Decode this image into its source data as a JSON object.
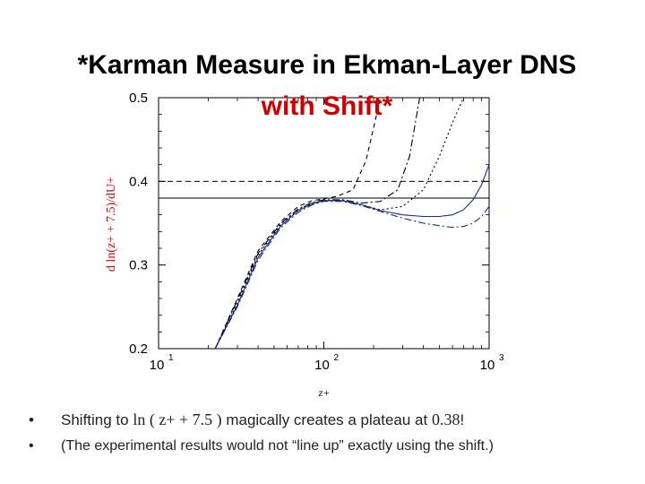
{
  "slide": {
    "title_line1": "*Karman Measure in Ekman-Layer DNS",
    "title_line2": "with Shift*",
    "accent_color": "#cc0000"
  },
  "bullets": [
    {
      "symbol": "•",
      "text_before": "Shifting to ",
      "math": "ln ( z+ + 7.5 )",
      "text_middle": " magically creates a plateau at ",
      "value": "0.38",
      "text_after": "!"
    },
    {
      "symbol": "•",
      "text": "(The experimental results would not “line up” exactly using the shift.)"
    }
  ],
  "chart_data": {
    "type": "line",
    "ylabel": "d ln(z+ + 7.5)/dU+",
    "xlabel": "z+",
    "x_scale": "log",
    "xlim": [
      10,
      1000
    ],
    "ylim": [
      0.2,
      0.5
    ],
    "x_ticks": [
      10,
      100,
      1000
    ],
    "x_tick_labels": [
      "10",
      "10",
      "10"
    ],
    "x_tick_exponents": [
      "1",
      "2",
      "3"
    ],
    "y_ticks": [
      0.2,
      0.3,
      0.4,
      0.5
    ],
    "y_tick_labels": [
      "0.2",
      "0.3",
      "0.4",
      "0.5"
    ],
    "ylabel_color": "#cc0000",
    "reference_lines": [
      {
        "y": 0.38,
        "style": "solid"
      },
      {
        "y": 0.4,
        "style": "dashed"
      }
    ],
    "series": [
      {
        "style": "dashed",
        "color": "#000000",
        "x": [
          22,
          30,
          40,
          55,
          70,
          85,
          100,
          120,
          150,
          180,
          220
        ],
        "y": [
          0.2,
          0.26,
          0.317,
          0.352,
          0.37,
          0.377,
          0.379,
          0.382,
          0.39,
          0.425,
          0.5
        ]
      },
      {
        "style": "dash-dot",
        "color": "#000000",
        "x": [
          22,
          30,
          40,
          55,
          70,
          85,
          100,
          130,
          170,
          220,
          280,
          330,
          380
        ],
        "y": [
          0.2,
          0.258,
          0.314,
          0.35,
          0.367,
          0.375,
          0.378,
          0.378,
          0.374,
          0.376,
          0.39,
          0.43,
          0.5
        ]
      },
      {
        "style": "dotted",
        "color": "#000000",
        "x": [
          22,
          30,
          40,
          55,
          70,
          85,
          100,
          130,
          170,
          220,
          300,
          400,
          500,
          600,
          700
        ],
        "y": [
          0.2,
          0.255,
          0.312,
          0.349,
          0.366,
          0.374,
          0.377,
          0.377,
          0.372,
          0.366,
          0.37,
          0.39,
          0.43,
          0.47,
          0.5
        ]
      },
      {
        "style": "solid",
        "color": "#1a2b8c",
        "x": [
          22,
          30,
          40,
          55,
          70,
          85,
          100,
          130,
          170,
          220,
          300,
          400,
          500,
          600,
          700,
          800,
          900,
          1000
        ],
        "y": [
          0.2,
          0.252,
          0.309,
          0.347,
          0.365,
          0.373,
          0.377,
          0.377,
          0.372,
          0.365,
          0.36,
          0.358,
          0.358,
          0.36,
          0.366,
          0.378,
          0.396,
          0.42
        ]
      },
      {
        "style": "dash-dot",
        "color": "#1a2b8c",
        "x": [
          22,
          30,
          40,
          55,
          70,
          85,
          100,
          130,
          170,
          220,
          300,
          400,
          500,
          600,
          700,
          800,
          900,
          1000
        ],
        "y": [
          0.2,
          0.25,
          0.306,
          0.345,
          0.363,
          0.372,
          0.376,
          0.376,
          0.371,
          0.364,
          0.356,
          0.35,
          0.347,
          0.345,
          0.346,
          0.35,
          0.358,
          0.37
        ]
      }
    ]
  }
}
